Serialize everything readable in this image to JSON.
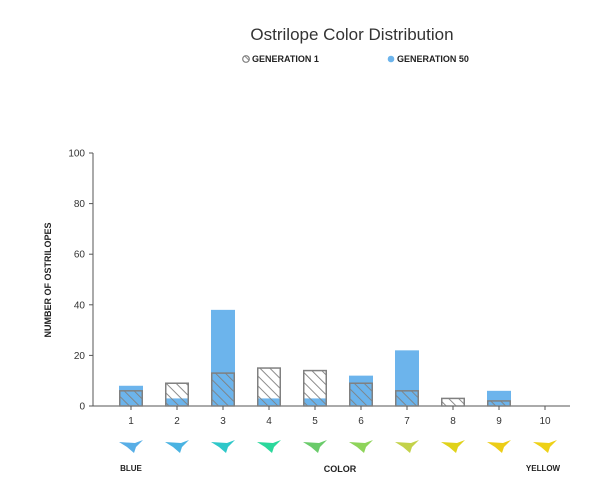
{
  "chart_data": {
    "type": "bar",
    "title": "Ostrilope Color Distribution",
    "xlabel": "COLOR",
    "ylabel": "NUMBER OF OSTRILOPES",
    "categories": [
      "1",
      "2",
      "3",
      "4",
      "5",
      "6",
      "7",
      "8",
      "9",
      "10"
    ],
    "ylim": [
      0,
      100
    ],
    "yticks": [
      0,
      20,
      40,
      60,
      80,
      100
    ],
    "legend_position": "top",
    "series": [
      {
        "name": "GENERATION 1",
        "values": [
          6,
          9,
          13,
          15,
          14,
          9,
          6,
          3,
          2,
          0
        ],
        "color": "#808080",
        "pattern": "hatched"
      },
      {
        "name": "GENERATION 50",
        "values": [
          8,
          3,
          38,
          3,
          3,
          12,
          22,
          0,
          6,
          0
        ],
        "color": "#6cb4ec"
      }
    ],
    "color_swatches": [
      "#58aee6",
      "#4ab3e2",
      "#2ec7c9",
      "#2bd89c",
      "#6acb6a",
      "#8ed45a",
      "#c3d24a",
      "#e0d21a",
      "#eccd17",
      "#eed116"
    ],
    "end_labels": {
      "left": "BLUE",
      "right": "YELLOW"
    }
  }
}
